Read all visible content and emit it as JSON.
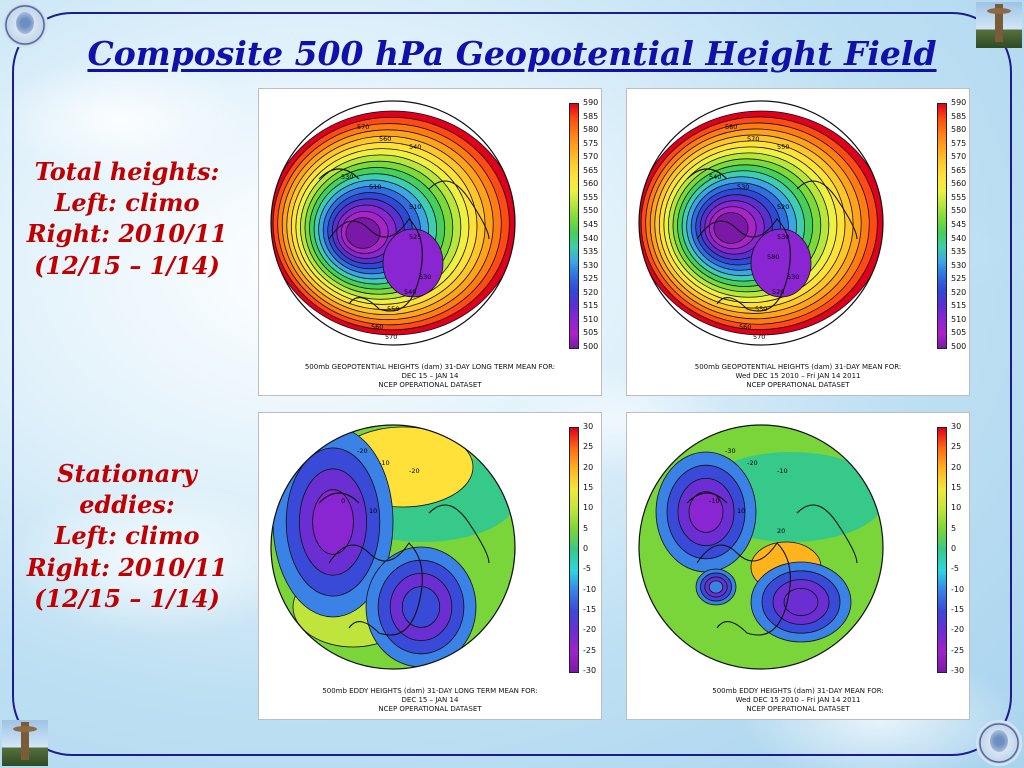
{
  "slide": {
    "title": "Composite 500 hPa Geopotential Height Field",
    "caption_top": [
      "Total heights:",
      "Left: climo",
      "Right: 2010/11",
      "(12/15 – 1/14)"
    ],
    "caption_bottom": [
      "Stationary",
      "eddies:",
      "Left: climo",
      "Right: 2010/11",
      "(12/15 – 1/14)"
    ]
  },
  "logos": [
    "ams-seal-icon",
    "space-needle-icon"
  ],
  "colorbars": {
    "heights": [
      "590",
      "585",
      "580",
      "575",
      "570",
      "565",
      "560",
      "555",
      "550",
      "545",
      "540",
      "535",
      "530",
      "525",
      "520",
      "515",
      "510",
      "505",
      "500"
    ],
    "eddies": [
      "30",
      "25",
      "20",
      "15",
      "10",
      "5",
      "0",
      "-5",
      "-10",
      "-15",
      "-20",
      "-25",
      "-30"
    ]
  },
  "panels": [
    {
      "id": "climo-heights",
      "caption": [
        "500mb GEOPOTENTIAL HEIGHTS (dam)    31-DAY LONG TERM MEAN FOR:",
        "DEC 15 – JAN 14",
        "NCEP OPERATIONAL DATASET"
      ],
      "labels": [
        "570",
        "560",
        "540",
        "530",
        "510",
        "510",
        "525",
        "530",
        "540",
        "550",
        "560",
        "570"
      ]
    },
    {
      "id": "2010-heights",
      "caption": [
        "500mb GEOPOTENTIAL HEIGHTS (dam)    31-DAY MEAN FOR:",
        "Wed DEC 15 2010 – Fri JAN 14 2011",
        "NCEP OPERATIONAL DATASET"
      ],
      "labels": [
        "580",
        "570",
        "550",
        "540",
        "530",
        "520",
        "530",
        "530",
        "520",
        "550",
        "560",
        "570",
        "580"
      ]
    },
    {
      "id": "climo-eddies",
      "caption": [
        "500mb EDDY HEIGHTS (dam)    31-DAY LONG TERM MEAN FOR:",
        "DEC 15 – JAN 14",
        "NCEP OPERATIONAL DATASET"
      ],
      "labels": [
        "-20",
        "-10",
        "-20",
        "0",
        "10"
      ]
    },
    {
      "id": "2010-eddies",
      "caption": [
        "500mb EDDY HEIGHTS (dam)    31-DAY MEAN FOR:",
        "Wed DEC 15 2010 – Fri JAN 14 2011",
        "NCEP OPERATIONAL DATASET"
      ],
      "labels": [
        "-30",
        "-20",
        "-10",
        "-10",
        "10",
        "20"
      ]
    }
  ],
  "colors": {
    "frame": "#1c1c8c",
    "title": "#1111aa",
    "caption": "#c00000",
    "heights_scale": [
      "#e0001c",
      "#ff4a14",
      "#ff7b14",
      "#ffa31c",
      "#ffc62c",
      "#ffe13a",
      "#eef142",
      "#b8e63c",
      "#7ada3a",
      "#46cf5c",
      "#3ecdb0",
      "#3aa6e4",
      "#2f6ee0",
      "#3048d6",
      "#5a2fd0",
      "#8a25d2",
      "#a824c9",
      "#7a18a8"
    ],
    "eddy_scale": [
      "#e0001c",
      "#ff6a14",
      "#ffb41e",
      "#f2e83c",
      "#bfe53c",
      "#7ad53a",
      "#36c98a",
      "#2dd6e0",
      "#3a82e6",
      "#3a4ad8",
      "#6a2ed2",
      "#a024c8",
      "#7a18a8"
    ]
  }
}
